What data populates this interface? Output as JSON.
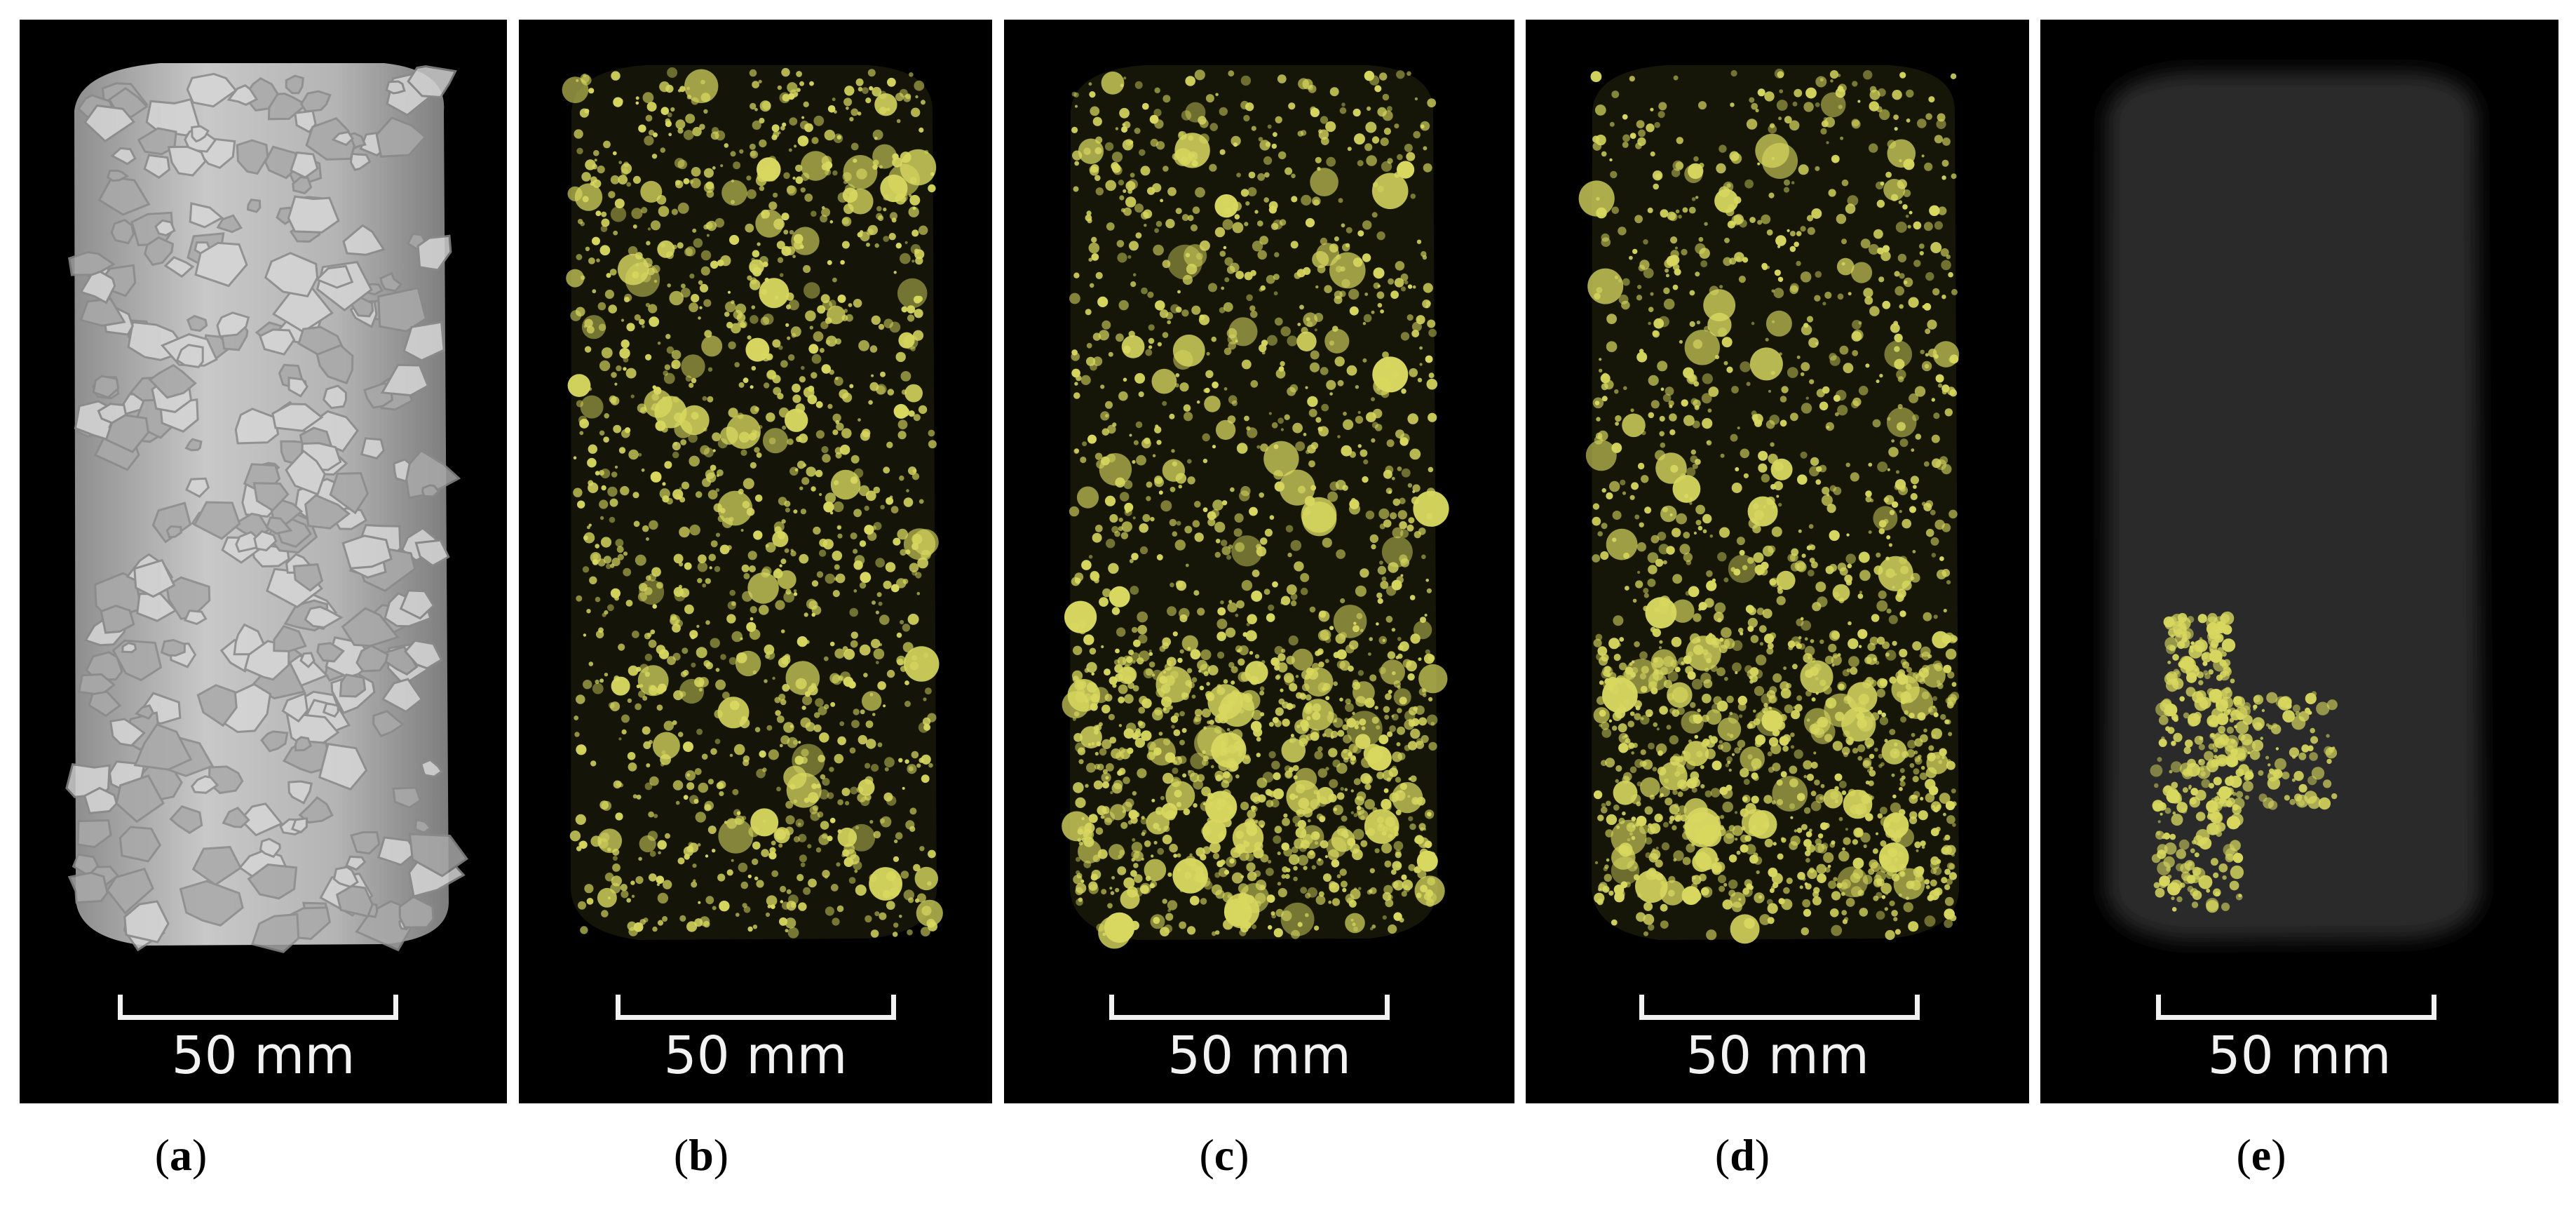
{
  "panels": [
    {
      "id": "a",
      "letter": "a",
      "scale_label": "50 mm",
      "render": "grey-core"
    },
    {
      "id": "b",
      "letter": "b",
      "scale_label": "50 mm",
      "render": "yellow-pores"
    },
    {
      "id": "c",
      "letter": "c",
      "scale_label": "50 mm",
      "render": "yellow-pores-dense"
    },
    {
      "id": "d",
      "letter": "d",
      "scale_label": "50 mm",
      "render": "yellow-pores-dense"
    },
    {
      "id": "e",
      "letter": "e",
      "scale_label": "50 mm",
      "render": "single-cluster"
    }
  ],
  "colors": {
    "background": "#000000",
    "core_grey": "#b8b8b8",
    "pore_yellow": "#d8d860",
    "ghost_cylinder": "#2b2b2b"
  }
}
